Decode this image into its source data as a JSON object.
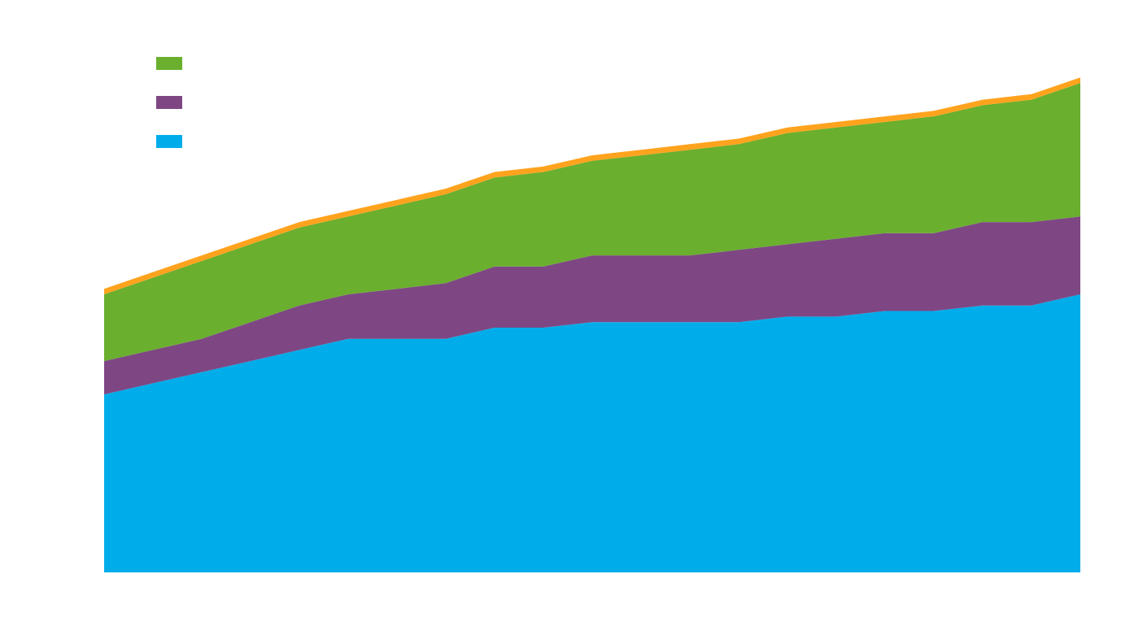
{
  "chart_data": {
    "type": "area",
    "stacked": true,
    "title": "",
    "xlabel": "",
    "ylabel": "",
    "x": [
      0,
      1,
      2,
      3,
      4,
      5,
      6,
      7,
      8,
      9,
      10,
      11,
      12,
      13,
      14,
      15,
      16,
      17,
      18,
      19,
      20
    ],
    "ylim": [
      0,
      100
    ],
    "series": [
      {
        "color": "#00adea",
        "values": [
          32,
          34,
          36,
          38,
          40,
          42,
          42,
          42,
          44,
          44,
          45,
          45,
          45,
          45,
          46,
          46,
          47,
          47,
          48,
          48,
          50
        ]
      },
      {
        "color": "#7e4784",
        "values": [
          6,
          6,
          6,
          7,
          8,
          8,
          9,
          10,
          11,
          11,
          12,
          12,
          12,
          13,
          13,
          14,
          14,
          14,
          15,
          15,
          14
        ]
      },
      {
        "color": "#6aaf2e",
        "values": [
          12,
          13,
          14,
          14,
          14,
          14,
          15,
          16,
          16,
          17,
          17,
          18,
          19,
          19,
          20,
          20,
          20,
          21,
          21,
          22,
          24
        ]
      },
      {
        "color": "#ffa31e",
        "values": [
          1,
          1,
          1,
          1,
          1,
          1,
          1,
          1,
          1,
          1,
          1,
          1,
          1,
          1,
          1,
          1,
          1,
          1,
          1,
          1,
          1
        ]
      }
    ],
    "legend": {
      "placement": "top-left"
    }
  }
}
